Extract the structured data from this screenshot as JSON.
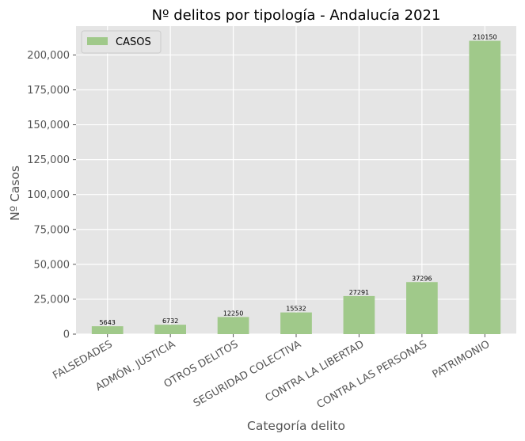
{
  "chart_data": {
    "type": "bar",
    "title": "Nº delitos por tipología - Andalucía 2021",
    "xlabel": "Categoría delito",
    "ylabel": "Nº Casos",
    "categories": [
      "FALSEDADES",
      "ADMÓN. JUSTICIA",
      "OTROS DELITOS",
      "SEGURIDAD COLECTIVA",
      "CONTRA LA LIBERTAD",
      "CONTRA LAS PERSONAS",
      "PATRIMONIO"
    ],
    "series": [
      {
        "name": "CASOS",
        "values": [
          5643,
          6732,
          12250,
          15532,
          27291,
          37296,
          210150
        ],
        "color": "#a0c98a"
      }
    ],
    "value_labels": [
      "5643",
      "6732",
      "12250",
      "15532",
      "27291",
      "37296",
      "210150"
    ],
    "yticks": [
      0,
      25000,
      50000,
      75000,
      100000,
      125000,
      150000,
      175000,
      200000
    ],
    "ytick_labels": [
      "0",
      "25,000",
      "50,000",
      "75,000",
      "100,000",
      "125,000",
      "150,000",
      "175,000",
      "200,000"
    ],
    "ylim": [
      0,
      220657
    ],
    "grid": true,
    "legend_position": "upper-left",
    "background_color": "#e5e5e5",
    "grid_color": "#ffffff"
  }
}
